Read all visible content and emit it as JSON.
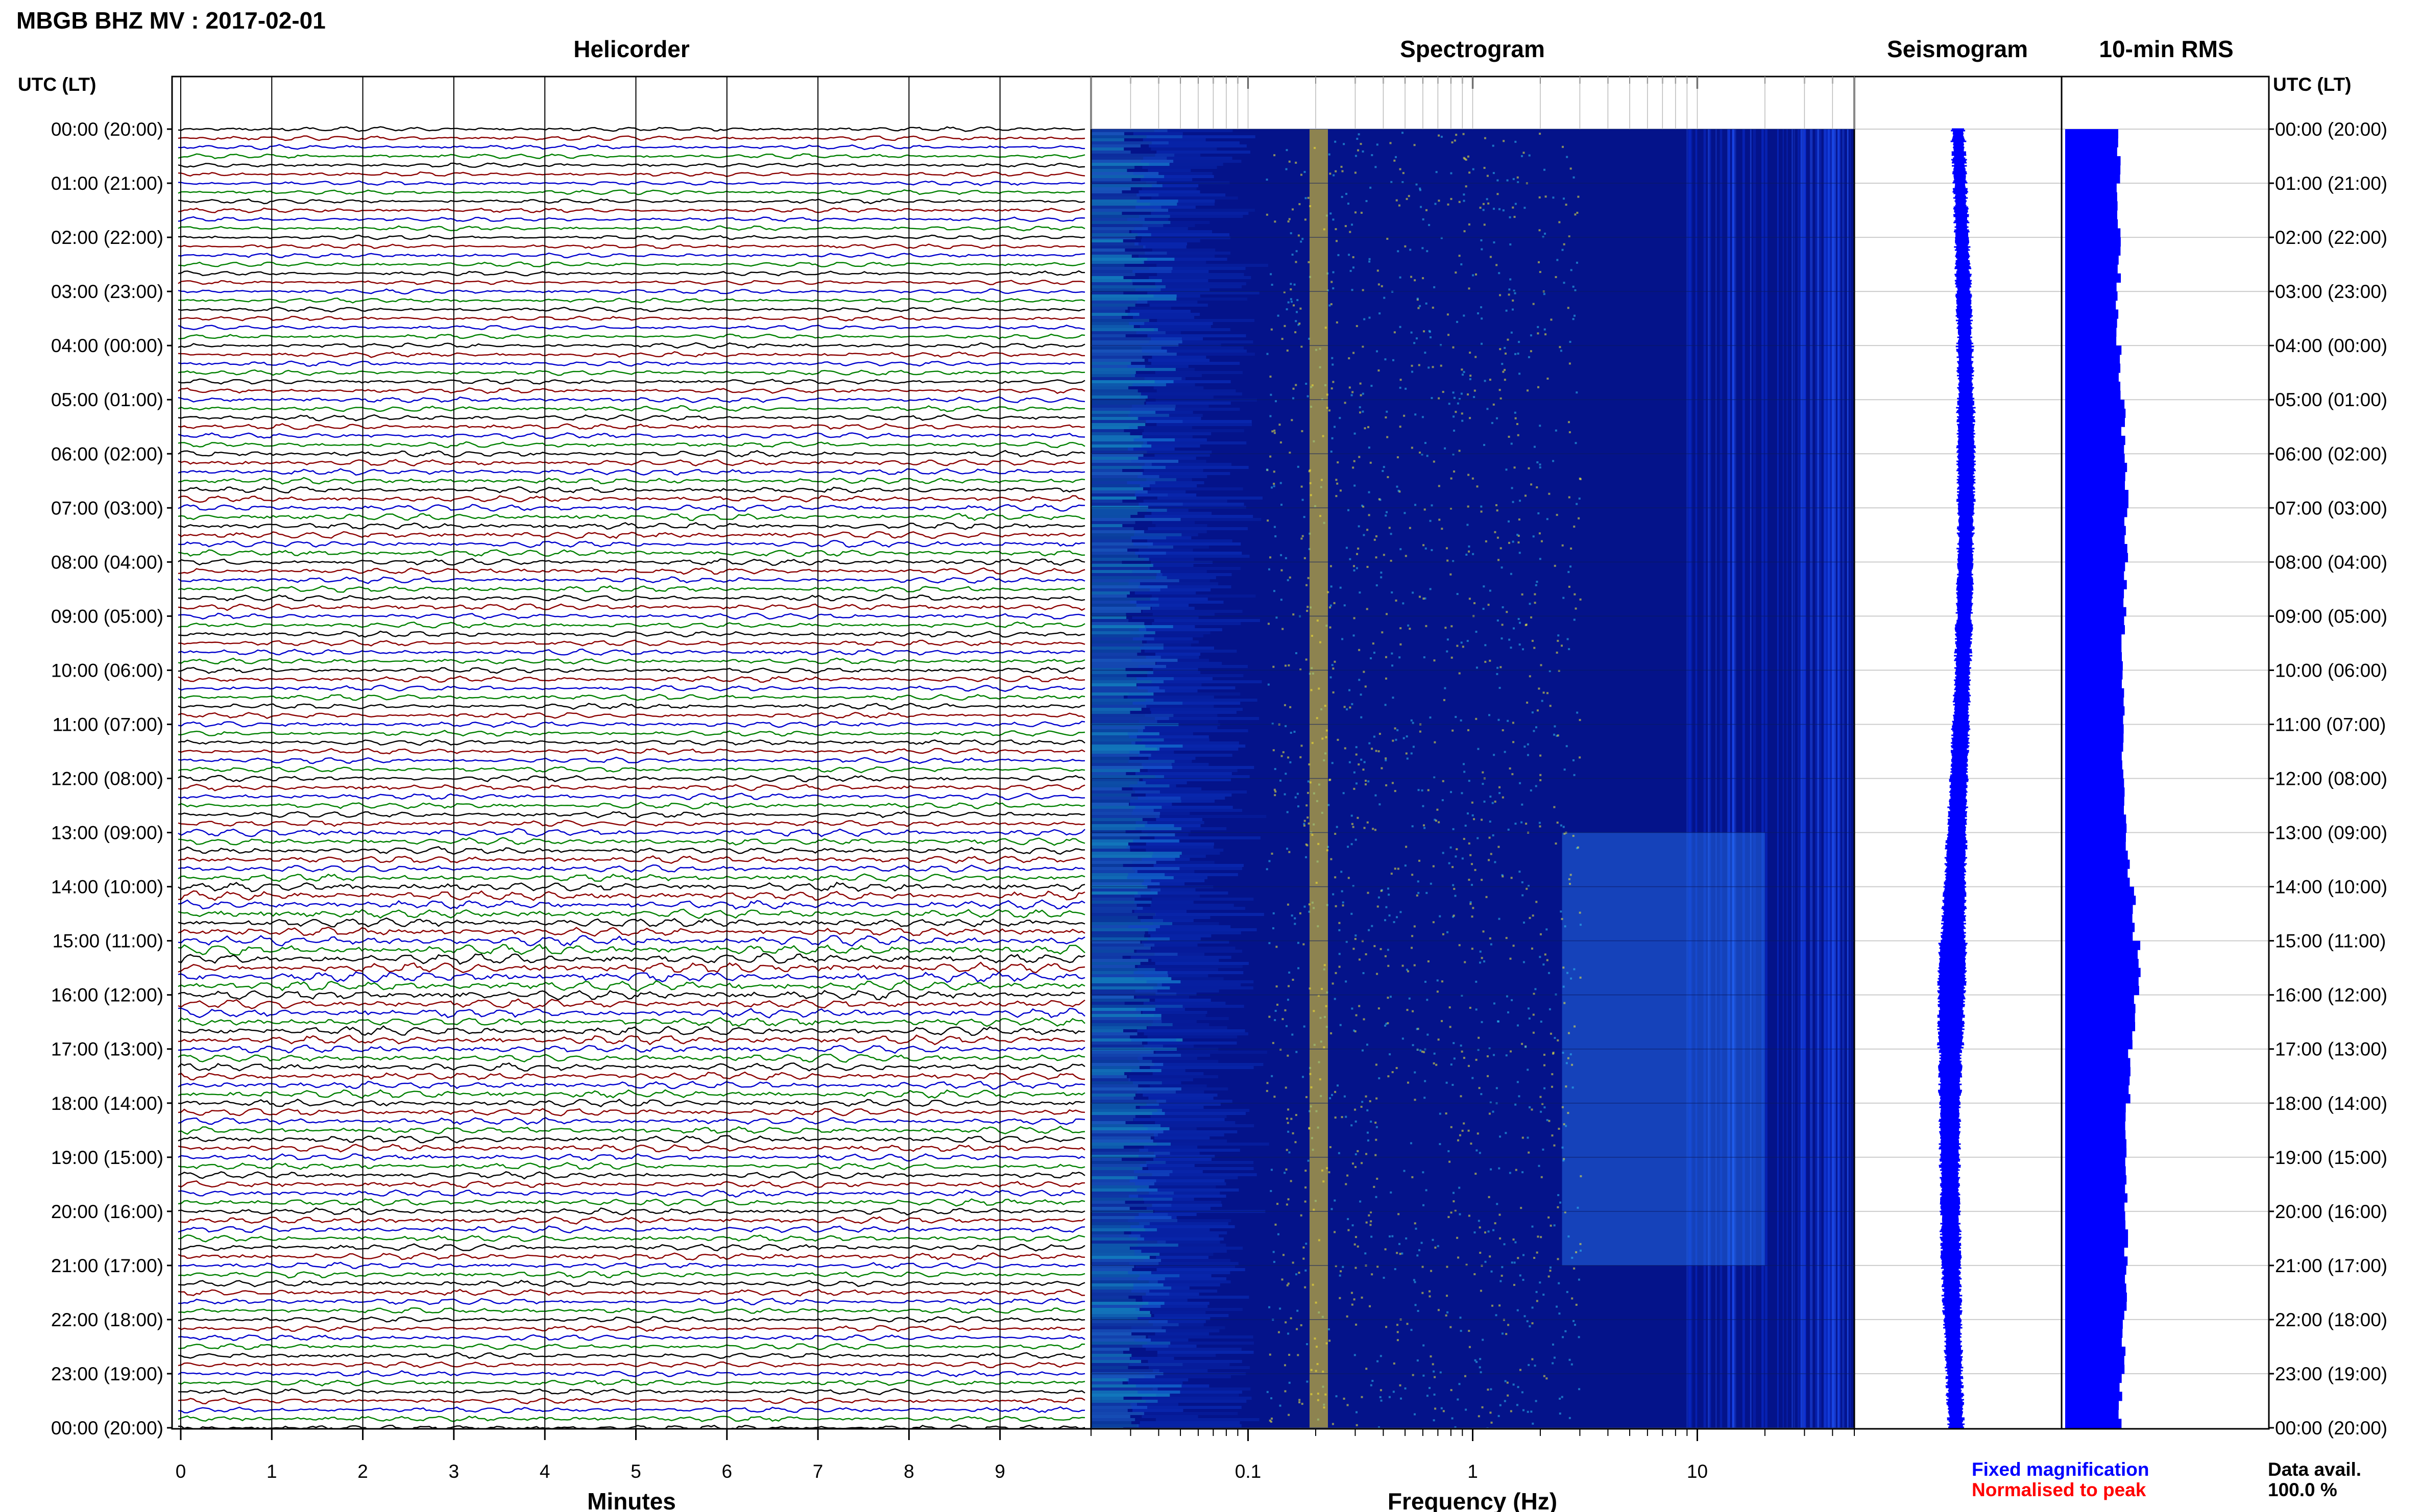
{
  "chart_data": {
    "type": "multi-panel",
    "title": "MBGB BHZ MV : 2017-02-01",
    "time_header_left": "UTC (LT)",
    "time_header_right": "UTC (LT)",
    "time_labels": [
      "00:00 (20:00)",
      "01:00 (21:00)",
      "02:00 (22:00)",
      "03:00 (23:00)",
      "04:00 (00:00)",
      "05:00 (01:00)",
      "06:00 (02:00)",
      "07:00 (03:00)",
      "08:00 (04:00)",
      "09:00 (05:00)",
      "10:00 (06:00)",
      "11:00 (07:00)",
      "12:00 (08:00)",
      "13:00 (09:00)",
      "14:00 (10:00)",
      "15:00 (11:00)",
      "16:00 (12:00)",
      "17:00 (13:00)",
      "18:00 (14:00)",
      "19:00 (15:00)",
      "20:00 (16:00)",
      "21:00 (17:00)",
      "22:00 (18:00)",
      "23:00 (19:00)",
      "00:00 (20:00)"
    ],
    "helicorder": {
      "title": "Helicorder",
      "xlabel": "Minutes",
      "xlim": [
        0,
        10
      ],
      "x_ticks": [
        "0",
        "1",
        "2",
        "3",
        "4",
        "5",
        "6",
        "7",
        "8",
        "9"
      ],
      "trace_colors": [
        "#000000",
        "#8b0000",
        "#0000cd",
        "#008000"
      ],
      "traces_per_hour": 6,
      "hourly_amplitude": [
        0.8,
        0.8,
        0.8,
        0.8,
        0.9,
        1.0,
        1.1,
        1.2,
        1.1,
        1.0,
        1.0,
        1.0,
        1.1,
        1.3,
        1.6,
        1.8,
        1.6,
        1.4,
        1.3,
        1.2,
        1.2,
        1.1,
        1.0,
        1.0
      ]
    },
    "spectrogram": {
      "title": "Spectrogram",
      "xlabel": "Frequency (Hz)",
      "x_scale": "log",
      "xlim": [
        0.02,
        50
      ],
      "x_ticks": [
        0.1,
        1,
        10
      ],
      "x_tick_labels": [
        "0.1",
        "1",
        "10"
      ],
      "colormap": "jet",
      "peak_frequency_hz": 0.2
    },
    "seismogram": {
      "title": "Seismogram",
      "hourly_amplitude": [
        0.8,
        0.8,
        0.9,
        0.9,
        1.0,
        1.1,
        1.1,
        1.0,
        1.0,
        1.0,
        1.0,
        1.1,
        1.2,
        1.4,
        1.6,
        1.9,
        1.8,
        1.5,
        1.4,
        1.3,
        1.3,
        1.2,
        1.1,
        1.0
      ]
    },
    "rms": {
      "title": "10-min RMS",
      "hourly_rms": [
        3.5,
        3.5,
        3.5,
        3.4,
        3.6,
        3.8,
        4.0,
        4.0,
        3.9,
        3.8,
        3.8,
        3.8,
        3.9,
        4.1,
        4.5,
        4.8,
        4.5,
        4.2,
        4.0,
        4.0,
        4.0,
        3.9,
        3.8,
        3.6
      ]
    },
    "legend": {
      "fixed": "Fixed magnification",
      "fixed_color": "#0000ff",
      "normalised": "Normalised to peak",
      "normalised_color": "#ff0000"
    },
    "data_avail_label": "Data avail.",
    "data_avail_value": "100.0 %"
  }
}
